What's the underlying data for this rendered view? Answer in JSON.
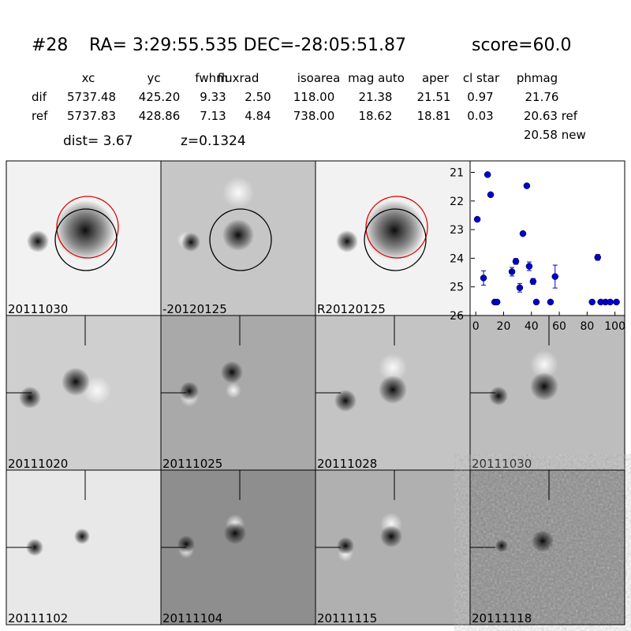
{
  "header": {
    "id": "#28",
    "coords": "RA= 3:29:55.535 DEC=-28:05:51.87",
    "score": "score=60.0"
  },
  "table": {
    "columns": [
      "xc",
      "yc",
      "fwhm",
      "fluxrad",
      "isoarea",
      "mag auto",
      "aper",
      "cl star",
      "phmag"
    ],
    "rows": [
      [
        "dif",
        "5737.48",
        "425.20",
        "9.33",
        "2.50",
        "118.00",
        "21.38",
        "21.51",
        "0.97",
        "21.76"
      ],
      [
        "ref",
        "5737.83",
        "428.86",
        "7.13",
        "4.84",
        "738.00",
        "18.62",
        "18.81",
        "0.03",
        "20.63 ref"
      ]
    ],
    "extra": "20.58 new"
  },
  "dist": "dist=  3.67",
  "z": "z=0.1324",
  "panels": [
    {
      "label": "20111030"
    },
    {
      "label": "-20120125"
    },
    {
      "label": "R20120125"
    },
    {
      "label": null
    },
    {
      "label": "20111020"
    },
    {
      "label": "20111025"
    },
    {
      "label": "20111028"
    },
    {
      "label": "20111030",
      "color": "#ff0000"
    },
    {
      "label": "20111102"
    },
    {
      "label": "20111104"
    },
    {
      "label": "20111115"
    },
    {
      "label": "20111118"
    }
  ],
  "chart_data": {
    "type": "scatter",
    "color": "#0000cc",
    "x": [
      1.1,
      5.6,
      8.5,
      10.7,
      13.6,
      15.3,
      26,
      28.8,
      31.6,
      33.9,
      36.7,
      38.4,
      41.2,
      43.5,
      53.7,
      57,
      83.6,
      87.6,
      89.8,
      93.2,
      96.6,
      101.1
    ],
    "values": [
      22.64,
      24.69,
      21.08,
      21.78,
      25.53,
      25.53,
      24.47,
      24.11,
      25.03,
      23.14,
      21.47,
      24.28,
      24.81,
      25.53,
      25.53,
      24.64,
      25.53,
      23.97,
      25.53,
      25.53,
      25.53,
      25.53
    ],
    "errors": [
      null,
      0.25,
      null,
      null,
      null,
      null,
      0.15,
      0.1,
      0.15,
      0.05,
      null,
      0.15,
      0.1,
      null,
      null,
      0.4,
      null,
      0.1,
      null,
      null,
      null,
      null
    ],
    "xlim": [
      -3.5,
      107
    ],
    "ylim": [
      20.6,
      26
    ],
    "invert_y": true,
    "xticks": [
      0,
      20,
      40,
      60,
      80,
      100
    ],
    "yticks": [
      21,
      22,
      23,
      24,
      25,
      26
    ]
  }
}
